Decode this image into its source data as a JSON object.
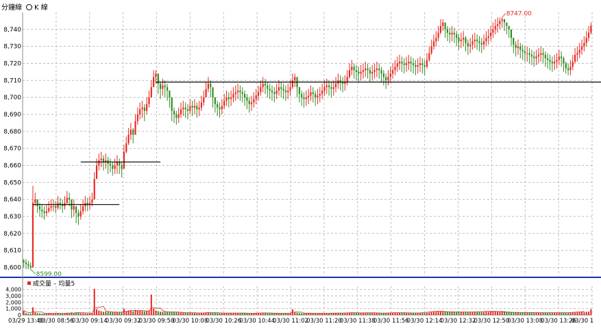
{
  "tabs": {
    "minute_line": "分鐘線",
    "k_line": "K 線"
  },
  "volume_legend": {
    "volume_label": "成交量",
    "avg_label": "均量5"
  },
  "colors": {
    "up": "#e8261f",
    "down": "#2e8b1f",
    "grid": "#bdbdbd",
    "separator": "#1c2ea8",
    "support_line": "#000000",
    "avg_line": "#c0392b"
  },
  "chart_data": {
    "type": "candlestick",
    "price_panel": {
      "ylim": [
        8595,
        8750
      ],
      "y_ticks": [
        8600,
        8610,
        8620,
        8630,
        8640,
        8650,
        8660,
        8670,
        8680,
        8690,
        8700,
        8710,
        8720,
        8730,
        8740
      ],
      "y_tick_labels": [
        "8,600",
        "8,610",
        "8,620",
        "8,630",
        "8,640",
        "8,650",
        "8,660",
        "8,670",
        "8,680",
        "8,690",
        "8,700",
        "8,710",
        "8,720",
        "8,730",
        "8,740"
      ],
      "grid": true,
      "annotations": [
        {
          "text": "8747.00",
          "value": 8747,
          "kind": "high"
        },
        {
          "text": "8599.00",
          "value": 8599,
          "kind": "low"
        }
      ],
      "horizontal_lines": [
        {
          "value": 8637,
          "x_start": 4,
          "x_end": 42
        },
        {
          "value": 8662,
          "x_start": 25,
          "x_end": 60
        },
        {
          "value": 8709,
          "x_start": 58,
          "x_end": 303
        }
      ],
      "close": [
        8603,
        8602,
        8601,
        8600,
        8638,
        8640,
        8636,
        8634,
        8633,
        8632,
        8633,
        8635,
        8636,
        8636,
        8635,
        8638,
        8637,
        8636,
        8638,
        8641,
        8640,
        8634,
        8636,
        8632,
        8630,
        8633,
        8636,
        8638,
        8637,
        8638,
        8640,
        8652,
        8660,
        8663,
        8664,
        8662,
        8663,
        8661,
        8660,
        8658,
        8660,
        8662,
        8660,
        8658,
        8668,
        8673,
        8678,
        8681,
        8678,
        8686,
        8690,
        8693,
        8694,
        8692,
        8696,
        8700,
        8706,
        8712,
        8714,
        8708,
        8705,
        8707,
        8706,
        8704,
        8700,
        8692,
        8690,
        8688,
        8690,
        8693,
        8694,
        8693,
        8692,
        8695,
        8694,
        8695,
        8693,
        8694,
        8697,
        8700,
        8705,
        8708,
        8706,
        8700,
        8696,
        8694,
        8693,
        8695,
        8698,
        8700,
        8699,
        8700,
        8702,
        8703,
        8704,
        8703,
        8702,
        8700,
        8698,
        8696,
        8697,
        8699,
        8701,
        8703,
        8706,
        8708,
        8707,
        8705,
        8704,
        8703,
        8702,
        8704,
        8706,
        8705,
        8704,
        8703,
        8704,
        8706,
        8710,
        8712,
        8706,
        8702,
        8700,
        8699,
        8700,
        8701,
        8703,
        8702,
        8700,
        8701,
        8702,
        8704,
        8706,
        8707,
        8706,
        8705,
        8706,
        8708,
        8710,
        8709,
        8708,
        8709,
        8712,
        8716,
        8718,
        8716,
        8715,
        8714,
        8715,
        8716,
        8717,
        8716,
        8714,
        8715,
        8716,
        8717,
        8716,
        8714,
        8712,
        8710,
        8712,
        8714,
        8716,
        8718,
        8720,
        8721,
        8720,
        8719,
        8720,
        8721,
        8720,
        8719,
        8718,
        8719,
        8720,
        8719,
        8718,
        8722,
        8726,
        8730,
        8733,
        8735,
        8738,
        8742,
        8744,
        8740,
        8738,
        8737,
        8738,
        8737,
        8735,
        8733,
        8734,
        8735,
        8732,
        8730,
        8731,
        8733,
        8734,
        8733,
        8732,
        8731,
        8733,
        8735,
        8736,
        8738,
        8740,
        8742,
        8743,
        8745,
        8746,
        8744,
        8742,
        8740,
        8735,
        8731,
        8729,
        8730,
        8728,
        8727,
        8726,
        8726,
        8725,
        8724,
        8723,
        8724,
        8725,
        8726,
        8725,
        8723,
        8722,
        8721,
        8720,
        8721,
        8722,
        8724,
        8723,
        8720,
        8717,
        8716,
        8718,
        8721,
        8725,
        8726,
        8728,
        8730,
        8732,
        8735,
        8738,
        8742
      ],
      "lows": [
        8600,
        8599,
        8599,
        8599,
        8632,
        8636,
        8632,
        8630,
        8629,
        8628,
        8630,
        8632,
        8633,
        8633,
        8632,
        8634,
        8634,
        8632,
        8634,
        8637,
        8636,
        8629,
        8630,
        8626,
        8625,
        8628,
        8631,
        8633,
        8633,
        8634,
        8636,
        8645,
        8654,
        8657,
        8659,
        8657,
        8658,
        8655,
        8656,
        8654,
        8655,
        8655,
        8655,
        8653,
        8662,
        8667,
        8672,
        8675,
        8673,
        8680,
        8684,
        8687,
        8688,
        8686,
        8690,
        8694,
        8700,
        8706,
        8708,
        8702,
        8699,
        8701,
        8700,
        8698,
        8694,
        8686,
        8685,
        8684,
        8685,
        8688,
        8689,
        8688,
        8687,
        8690,
        8689,
        8690,
        8688,
        8689,
        8692,
        8695,
        8700,
        8703,
        8700,
        8694,
        8691,
        8689,
        8688,
        8690,
        8693,
        8695,
        8694,
        8695,
        8697,
        8698,
        8699,
        8698,
        8697,
        8695,
        8693,
        8691,
        8692,
        8694,
        8696,
        8698,
        8701,
        8703,
        8702,
        8700,
        8699,
        8698,
        8697,
        8699,
        8701,
        8700,
        8699,
        8698,
        8699,
        8701,
        8705,
        8706,
        8700,
        8697,
        8695,
        8694,
        8695,
        8696,
        8698,
        8697,
        8695,
        8696,
        8697,
        8699,
        8701,
        8702,
        8701,
        8700,
        8701,
        8703,
        8705,
        8704,
        8703,
        8704,
        8707,
        8711,
        8713,
        8711,
        8710,
        8709,
        8710,
        8711,
        8712,
        8711,
        8709,
        8710,
        8711,
        8712,
        8711,
        8709,
        8707,
        8705,
        8707,
        8709,
        8711,
        8713,
        8715,
        8716,
        8715,
        8714,
        8715,
        8716,
        8715,
        8714,
        8713,
        8714,
        8715,
        8714,
        8713,
        8717,
        8721,
        8725,
        8728,
        8730,
        8733,
        8737,
        8739,
        8735,
        8733,
        8732,
        8733,
        8732,
        8730,
        8728,
        8729,
        8730,
        8727,
        8725,
        8726,
        8728,
        8729,
        8728,
        8727,
        8726,
        8728,
        8730,
        8731,
        8733,
        8735,
        8737,
        8738,
        8740,
        8741,
        8739,
        8737,
        8735,
        8730,
        8726,
        8724,
        8725,
        8723,
        8722,
        8721,
        8721,
        8720,
        8719,
        8718,
        8719,
        8720,
        8721,
        8720,
        8718,
        8717,
        8716,
        8715,
        8716,
        8717,
        8719,
        8718,
        8715,
        8714,
        8713,
        8713,
        8716,
        8720,
        8721,
        8723,
        8725,
        8727,
        8730,
        8733,
        8737
      ],
      "highs": [
        8605,
        8605,
        8604,
        8603,
        8648,
        8644,
        8640,
        8638,
        8637,
        8636,
        8637,
        8639,
        8640,
        8640,
        8639,
        8642,
        8641,
        8640,
        8642,
        8645,
        8644,
        8639,
        8640,
        8636,
        8634,
        8637,
        8640,
        8642,
        8641,
        8642,
        8644,
        8656,
        8664,
        8667,
        8668,
        8666,
        8667,
        8665,
        8664,
        8662,
        8664,
        8666,
        8664,
        8662,
        8672,
        8677,
        8682,
        8685,
        8682,
        8690,
        8694,
        8697,
        8698,
        8696,
        8700,
        8704,
        8710,
        8716,
        8716,
        8712,
        8709,
        8711,
        8710,
        8708,
        8704,
        8696,
        8694,
        8692,
        8694,
        8697,
        8698,
        8697,
        8696,
        8699,
        8698,
        8699,
        8697,
        8698,
        8701,
        8704,
        8709,
        8712,
        8710,
        8704,
        8700,
        8698,
        8697,
        8699,
        8702,
        8704,
        8703,
        8704,
        8706,
        8707,
        8708,
        8707,
        8706,
        8704,
        8702,
        8700,
        8701,
        8703,
        8705,
        8707,
        8710,
        8712,
        8711,
        8709,
        8708,
        8707,
        8706,
        8708,
        8710,
        8709,
        8708,
        8707,
        8708,
        8710,
        8714,
        8714,
        8710,
        8706,
        8704,
        8703,
        8704,
        8705,
        8707,
        8706,
        8704,
        8705,
        8706,
        8708,
        8710,
        8711,
        8710,
        8709,
        8710,
        8712,
        8714,
        8713,
        8712,
        8713,
        8716,
        8720,
        8722,
        8720,
        8719,
        8718,
        8719,
        8720,
        8721,
        8720,
        8718,
        8719,
        8720,
        8721,
        8720,
        8718,
        8716,
        8714,
        8716,
        8718,
        8720,
        8722,
        8724,
        8725,
        8724,
        8723,
        8724,
        8725,
        8724,
        8723,
        8722,
        8723,
        8724,
        8723,
        8722,
        8726,
        8730,
        8734,
        8737,
        8739,
        8742,
        8746,
        8746,
        8744,
        8742,
        8741,
        8742,
        8741,
        8739,
        8737,
        8738,
        8739,
        8736,
        8734,
        8735,
        8737,
        8738,
        8737,
        8736,
        8735,
        8737,
        8739,
        8740,
        8742,
        8744,
        8746,
        8747,
        8747,
        8747,
        8746,
        8744,
        8742,
        8739,
        8735,
        8733,
        8734,
        8732,
        8731,
        8730,
        8730,
        8729,
        8728,
        8727,
        8728,
        8729,
        8730,
        8729,
        8727,
        8726,
        8725,
        8724,
        8725,
        8726,
        8728,
        8727,
        8724,
        8721,
        8720,
        8722,
        8725,
        8729,
        8730,
        8732,
        8734,
        8736,
        8739,
        8742,
        8744
      ]
    },
    "volume_panel": {
      "ylim": [
        0,
        4500
      ],
      "y_ticks": [
        0,
        1000,
        2000,
        3000,
        4000
      ],
      "y_tick_labels": [
        "0",
        "1,000",
        "2,000",
        "3,000",
        "4,000"
      ],
      "volume": [
        700,
        300,
        200,
        200,
        1200,
        400,
        300,
        250,
        200,
        220,
        260,
        300,
        280,
        240,
        250,
        300,
        260,
        240,
        280,
        350,
        300,
        400,
        320,
        380,
        420,
        300,
        280,
        260,
        240,
        260,
        300,
        4100,
        900,
        700,
        600,
        500,
        520,
        480,
        450,
        420,
        440,
        460,
        420,
        400,
        1000,
        600,
        700,
        650,
        560,
        800,
        700,
        650,
        600,
        550,
        620,
        700,
        3200,
        1000,
        700,
        600,
        520,
        500,
        480,
        460,
        450,
        500,
        480,
        420,
        400,
        380,
        360,
        350,
        340,
        360,
        330,
        320,
        300,
        310,
        330,
        350,
        400,
        420,
        380,
        340,
        320,
        300,
        290,
        300,
        320,
        330,
        300,
        290,
        300,
        310,
        320,
        300,
        290,
        280,
        270,
        260,
        270,
        290,
        300,
        310,
        330,
        350,
        320,
        300,
        290,
        280,
        270,
        290,
        300,
        290,
        280,
        270,
        280,
        300,
        900,
        400,
        320,
        300,
        280,
        260,
        270,
        280,
        290,
        280,
        270,
        260,
        270,
        280,
        290,
        300,
        290,
        280,
        290,
        300,
        320,
        310,
        300,
        310,
        330,
        360,
        380,
        350,
        330,
        320,
        330,
        340,
        350,
        340,
        320,
        330,
        340,
        350,
        340,
        320,
        300,
        290,
        300,
        320,
        330,
        350,
        370,
        380,
        360,
        340,
        350,
        360,
        340,
        320,
        310,
        320,
        330,
        320,
        310,
        350,
        400,
        450,
        500,
        520,
        560,
        600,
        620,
        580,
        540,
        520,
        530,
        510,
        490,
        470,
        480,
        490,
        460,
        440,
        450,
        470,
        480,
        470,
        460,
        450,
        470,
        490,
        500,
        520,
        540,
        560,
        580,
        600,
        620,
        580,
        550,
        520,
        480,
        450,
        430,
        440,
        420,
        410,
        400,
        400,
        390,
        380,
        370,
        380,
        390,
        400,
        390,
        370,
        360,
        350,
        340,
        350,
        360,
        380,
        370,
        350,
        340,
        330,
        340,
        370,
        400,
        420,
        440,
        460,
        480,
        500,
        520,
        900
      ],
      "avg5": [
        700,
        500,
        400,
        350,
        520,
        460,
        470,
        470,
        470,
        280,
        246,
        246,
        262,
        268,
        264,
        274,
        266,
        258,
        266,
        286,
        286,
        314,
        324,
        350,
        368,
        364,
        360,
        348,
        336,
        308,
        268,
        1040,
        1140,
        1200,
        1280,
        1360,
        644,
        560,
        510,
        474,
        462,
        450,
        438,
        428,
        548,
        576,
        624,
        674,
        702,
        662,
        682,
        672,
        672,
        660,
        634,
        626,
        1076,
        1114,
        1084,
        1046,
        1104,
        664,
        560,
        512,
        482,
        478,
        476,
        462,
        450,
        426,
        400,
        382,
        366,
        358,
        348,
        342,
        330,
        320,
        318,
        322,
        346,
        372,
        376,
        378,
        370,
        352,
        332,
        310,
        306,
        308,
        308,
        304,
        308,
        310,
        308,
        304,
        302,
        296,
        284,
        276,
        272,
        276,
        284,
        296,
        312,
        328,
        330,
        326,
        318,
        304,
        292,
        284,
        282,
        282,
        280,
        280,
        280,
        284,
        440,
        448,
        456,
        448,
        440,
        314,
        288,
        284,
        284,
        280,
        274,
        272,
        274,
        276,
        280,
        282,
        282,
        284,
        288,
        296,
        300,
        304,
        308,
        320,
        334,
        346,
        350,
        350,
        346,
        340,
        334,
        336,
        338,
        338,
        338,
        338,
        338,
        334,
        322,
        314,
        310,
        312,
        318,
        332,
        344,
        356,
        360,
        362,
        358,
        350,
        342,
        334,
        328,
        326,
        324,
        320,
        332,
        352,
        382,
        424,
        468,
        516,
        548,
        574,
        584,
        574,
        560,
        544,
        520,
        500,
        490,
        486,
        482,
        472,
        466,
        464,
        464,
        466,
        470,
        478,
        488,
        498,
        512,
        530,
        548,
        564,
        578,
        580,
        578,
        568,
        548,
        522,
        492,
        460,
        440,
        430,
        418,
        410,
        402,
        394,
        390,
        386,
        384,
        386,
        388,
        386,
        380,
        376,
        370,
        360,
        354,
        354,
        358,
        362,
        364,
        362,
        360,
        356,
        354,
        356,
        362,
        376,
        394,
        412,
        436,
        460,
        480,
        500,
        568
      ],
      "grid": true
    },
    "x_tick_labels": [
      "03/29 13:40",
      "03/30 08:56",
      "03/30 09:14",
      "03/30 09:32",
      "03/30 09:50",
      "03/30 10:08",
      "03/30 10:26",
      "03/30 10:44",
      "03/30 11:02",
      "03/30 11:20",
      "03/30 11:38",
      "03/30 11:56",
      "03/30 12:14",
      "03/30 12:32",
      "03/30 12:50",
      "03/30 13:08",
      "03/30 13:26",
      "03/30 1"
    ]
  }
}
